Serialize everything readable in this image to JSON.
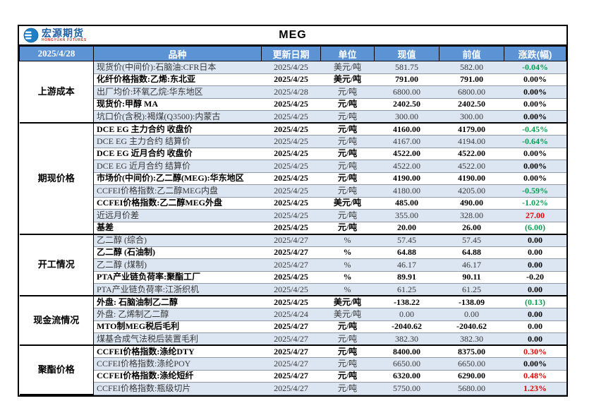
{
  "brand": {
    "logo_text": "宏源期货",
    "logo_subtext": "HONGYUAN FUTURES",
    "logo_text_color": "#1B5EA8",
    "logo_subtext_color": "#D9372A",
    "logo_circle_color": "#1E7FC6"
  },
  "title": "MEG",
  "header": {
    "date": "2025/4/28",
    "columns": [
      "品种",
      "更新日期",
      "单位",
      "现值",
      "前值",
      "涨跌(幅)"
    ]
  },
  "colors": {
    "header_bg": "#5B93D5",
    "row_alt_bg": "#DCE6F2",
    "up_red": "#E60000",
    "down_green": "#00A050",
    "neutral": "#000000"
  },
  "sections": [
    {
      "label": "上游成本",
      "rows": [
        {
          "name": "现货价(中间价):石脑油:CFR日本",
          "date": "2025/4/25",
          "unit": "美元/吨",
          "current": "581.75",
          "previous": "582.00",
          "change": "-0.04%",
          "change_color": "green",
          "bold": false
        },
        {
          "name": "化纤价格指数:乙烯:东北亚",
          "date": "2025/4/25",
          "unit": "美元/吨",
          "current": "791.00",
          "previous": "791.00",
          "change": "0.00%",
          "change_color": "black",
          "bold": true
        },
        {
          "name": "出厂均价:环氧乙烷:华东地区",
          "date": "2025/4/28",
          "unit": "元/吨",
          "current": "6800.00",
          "previous": "6800.00",
          "change": "0.00%",
          "change_color": "black",
          "bold": false
        },
        {
          "name": "现货价:甲醇 MA",
          "date": "2025/4/25",
          "unit": "元/吨",
          "current": "2402.50",
          "previous": "2402.50",
          "change": "0.00%",
          "change_color": "black",
          "bold": true
        },
        {
          "name": "坑口价(含税):褐煤(Q3500):内蒙古",
          "date": "2025/4/25",
          "unit": "元/吨",
          "current": "300.00",
          "previous": "300.00",
          "change": "0.00%",
          "change_color": "black",
          "bold": false
        }
      ]
    },
    {
      "label": "期现价格",
      "rows": [
        {
          "name": "DCE EG 主力合约 收盘价",
          "date": "2025/4/25",
          "unit": "元/吨",
          "current": "4160.00",
          "previous": "4179.00",
          "change": "-0.45%",
          "change_color": "green",
          "bold": true
        },
        {
          "name": "DCE EG 主力合约 结算价",
          "date": "2025/4/25",
          "unit": "元/吨",
          "current": "4167.00",
          "previous": "4194.00",
          "change": "-0.64%",
          "change_color": "green",
          "bold": false
        },
        {
          "name": "DCE EG 近月合约 收盘价",
          "date": "2025/4/25",
          "unit": "元/吨",
          "current": "4522.00",
          "previous": "4522.00",
          "change": "0.00%",
          "change_color": "black",
          "bold": true
        },
        {
          "name": "DCE EG 近月合约 结算价",
          "date": "2025/4/25",
          "unit": "元/吨",
          "current": "4522.00",
          "previous": "4522.00",
          "change": "0.00%",
          "change_color": "black",
          "bold": false
        },
        {
          "name": "市场价(中间价):乙二醇(MEG):华东地区",
          "date": "2025/4/25",
          "unit": "元/吨",
          "current": "4190.00",
          "previous": "4190.00",
          "change": "0.00%",
          "change_color": "black",
          "bold": true
        },
        {
          "name": "CCFEI价格指数:乙二醇MEG内盘",
          "date": "2025/4/25",
          "unit": "元/吨",
          "current": "4180.00",
          "previous": "4205.00",
          "change": "-0.59%",
          "change_color": "green",
          "bold": false
        },
        {
          "name": "CCFEI价格指数:乙二醇MEG外盘",
          "date": "2025/4/25",
          "unit": "美元/吨",
          "current": "485.00",
          "previous": "490.00",
          "change": "-1.02%",
          "change_color": "green",
          "bold": true
        },
        {
          "name": "近远月价差",
          "date": "2025/4/25",
          "unit": "元/吨",
          "current": "355.00",
          "previous": "328.00",
          "change": "27.00",
          "change_color": "red",
          "bold": false
        },
        {
          "name": "基差",
          "date": "2025/4/25",
          "unit": "元/吨",
          "current": "20.00",
          "previous": "26.00",
          "change": "(6.00)",
          "change_color": "green",
          "bold": true
        }
      ]
    },
    {
      "label": "开工情况",
      "rows": [
        {
          "name": "乙二醇 (综合)",
          "date": "2025/4/27",
          "unit": "%",
          "current": "57.45",
          "previous": "57.45",
          "change": "0.00",
          "change_color": "black",
          "bold": false
        },
        {
          "name": "乙二醇 (石油制)",
          "date": "2025/4/27",
          "unit": "%",
          "current": "64.88",
          "previous": "64.88",
          "change": "0.00",
          "change_color": "black",
          "bold": true
        },
        {
          "name": "乙二醇 (煤制)",
          "date": "2025/4/27",
          "unit": "%",
          "current": "46.17",
          "previous": "46.17",
          "change": "0.00",
          "change_color": "black",
          "bold": false
        },
        {
          "name": "PTA产业链负荷率:聚酯工厂",
          "date": "2025/4/25",
          "unit": "%",
          "current": "89.91",
          "previous": "90.11",
          "change": "-0.20",
          "change_color": "black",
          "bold": true
        },
        {
          "name": "PTA产业链负荷率:江浙织机",
          "date": "2025/4/25",
          "unit": "%",
          "current": "61.25",
          "previous": "61.25",
          "change": "0.00",
          "change_color": "black",
          "bold": false
        }
      ]
    },
    {
      "label": "现金流情况",
      "rows": [
        {
          "name": "外盘: 石脑油制乙二醇",
          "date": "2025/4/25",
          "unit": "美元/吨",
          "current": "-138.22",
          "previous": "-138.09",
          "change": "(0.13)",
          "change_color": "green",
          "bold": true
        },
        {
          "name": "外盘: 乙烯制乙二醇",
          "date": "2025/4/24",
          "unit": "美元/吨",
          "current": "0.00",
          "previous": "0.00",
          "change": "0.00",
          "change_color": "black",
          "bold": false
        },
        {
          "name": "MTO制MEG税后毛利",
          "date": "2025/4/27",
          "unit": "元/吨",
          "current": "-2040.62",
          "previous": "-2040.62",
          "change": "0.00",
          "change_color": "black",
          "bold": true
        },
        {
          "name": "煤基合成气法税后装置毛利",
          "date": "2025/4/27",
          "unit": "元/吨",
          "current": "382.30",
          "previous": "382.30",
          "change": "0.00",
          "change_color": "black",
          "bold": false
        }
      ]
    },
    {
      "label": "聚酯价格",
      "rows": [
        {
          "name": "CCFEI价格指数:涤纶DTY",
          "date": "2025/4/27",
          "unit": "元/吨",
          "current": "8400.00",
          "previous": "8375.00",
          "change": "0.30%",
          "change_color": "red",
          "bold": true
        },
        {
          "name": "CCFEI价格指数:涤纶POY",
          "date": "2025/4/27",
          "unit": "元/吨",
          "current": "6650.00",
          "previous": "6650.00",
          "change": "0.00%",
          "change_color": "black",
          "bold": false
        },
        {
          "name": "CCFEI价格指数:涤纶短纤",
          "date": "2025/4/27",
          "unit": "元/吨",
          "current": "6320.00",
          "previous": "6290.00",
          "change": "0.48%",
          "change_color": "red",
          "bold": true
        },
        {
          "name": "CCFEI价格指数:瓶级切片",
          "date": "2025/4/27",
          "unit": "元/吨",
          "current": "5750.00",
          "previous": "5680.00",
          "change": "1.23%",
          "change_color": "red",
          "bold": false
        }
      ]
    }
  ]
}
